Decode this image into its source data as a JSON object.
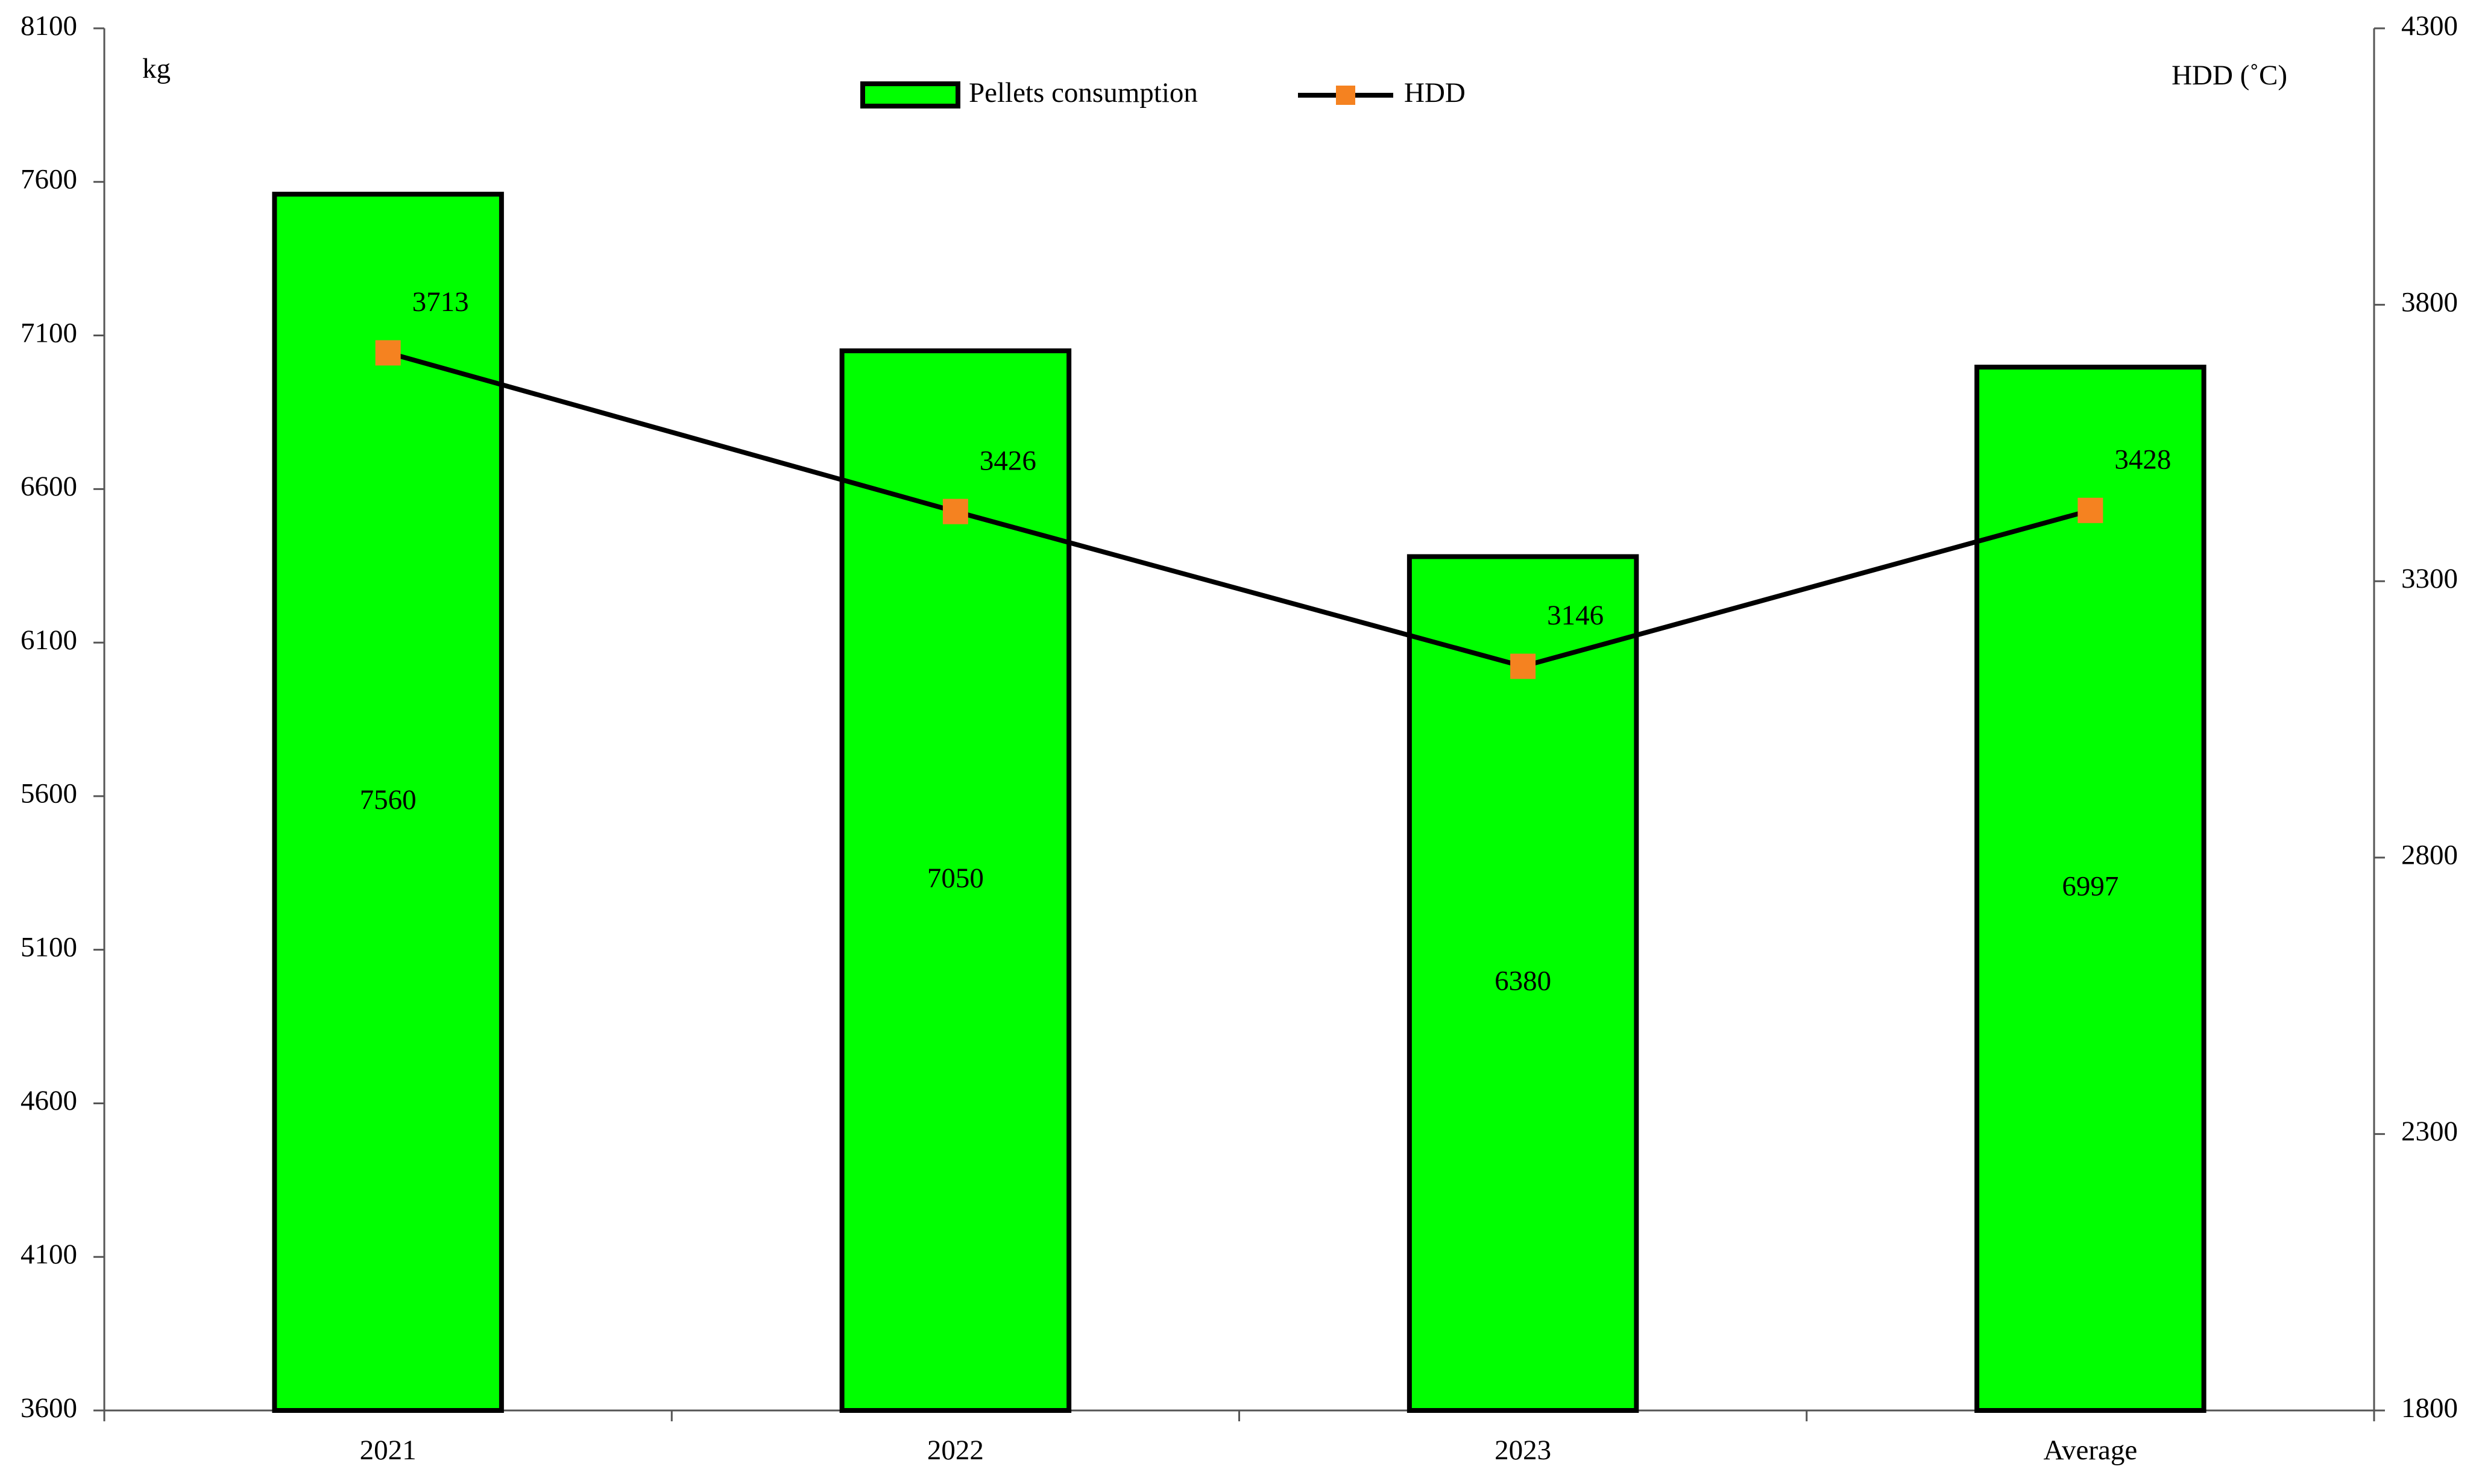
{
  "chart_data": {
    "type": "bar_line",
    "categories": [
      "2021",
      "2022",
      "2023",
      "Average"
    ],
    "series": [
      {
        "name": "Pellets consumption",
        "type": "bar",
        "color": "#00ff00",
        "values": [
          7560,
          7050,
          6380,
          6997
        ]
      },
      {
        "name": "HDD",
        "type": "line",
        "axis": "y2",
        "color": "#000000",
        "marker_color": "#f58220",
        "values": [
          3713,
          3426,
          3146,
          3428
        ]
      }
    ],
    "y_label": "kg",
    "y2_label": "HDD (˚C)",
    "ylim": [
      3600,
      8100
    ],
    "yticks": [
      3600,
      4100,
      4600,
      5100,
      5600,
      6100,
      6600,
      7100,
      7600,
      8100
    ],
    "y2lim": [
      1800,
      4300
    ],
    "y2ticks": [
      1800,
      2300,
      2800,
      3300,
      3800,
      4300
    ],
    "legend": "top",
    "grid": false
  }
}
